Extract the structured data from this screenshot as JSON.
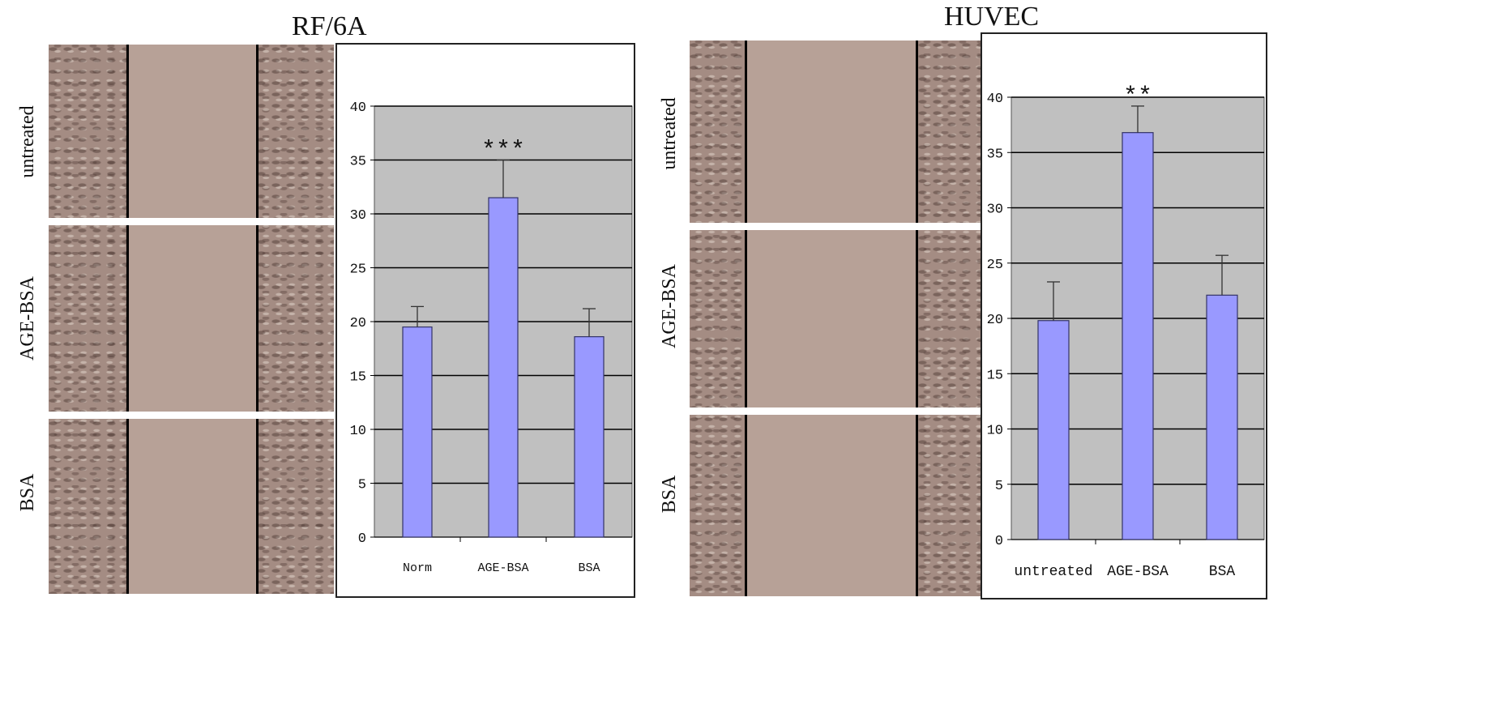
{
  "left_panel": {
    "title": "RF/6A",
    "row_labels": [
      "untreated",
      "AGE-BSA",
      "BSA"
    ]
  },
  "right_panel": {
    "title": "HUVEC",
    "row_labels": [
      "untreated",
      "AGE-BSA",
      "BSA"
    ]
  },
  "colors": {
    "bar_fill": "#9999ff",
    "bar_stroke": "#333366",
    "plot_bg": "#c0c0c0",
    "grid": "#000000",
    "microscopy": "#b39b92"
  },
  "chart_data": [
    {
      "type": "bar",
      "title": "RF/6A",
      "categories": [
        "Norm",
        "AGE-BSA",
        "BSA"
      ],
      "values": [
        19.5,
        31.5,
        18.6
      ],
      "errors": [
        1.9,
        3.5,
        2.6
      ],
      "annotations": [
        "",
        "***",
        ""
      ],
      "ylim": [
        0,
        40
      ],
      "yticks": [
        0,
        5,
        10,
        15,
        20,
        25,
        30,
        35,
        40
      ],
      "xlabel": "",
      "ylabel": "",
      "grid": true
    },
    {
      "type": "bar",
      "title": "HUVEC",
      "categories": [
        "untreated",
        "AGE-BSA",
        "BSA"
      ],
      "values": [
        19.8,
        36.8,
        22.1
      ],
      "errors": [
        3.5,
        2.4,
        3.6
      ],
      "annotations": [
        "",
        "**",
        ""
      ],
      "ylim": [
        0,
        40
      ],
      "yticks": [
        0,
        5,
        10,
        15,
        20,
        25,
        30,
        35,
        40
      ],
      "xlabel": "",
      "ylabel": "",
      "grid": true
    }
  ]
}
